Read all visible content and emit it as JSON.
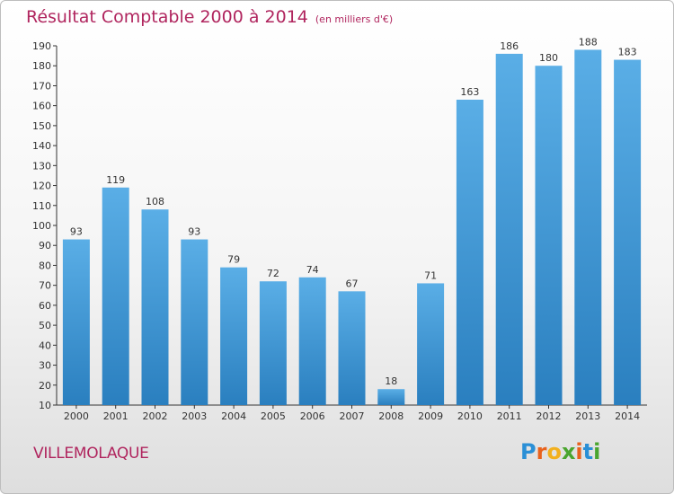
{
  "header": {
    "title": "Résultat Comptable 2000 à 2014",
    "subtitle": "(en milliers d'€)"
  },
  "commune": "VILLEMOLAQUE",
  "logo": {
    "text": "Proxiti",
    "letters": [
      "P",
      "r",
      "o",
      "x",
      "i",
      "t",
      "i"
    ],
    "colors": [
      "#2a8fd6",
      "#e8621d",
      "#f2b01e",
      "#4aa52e",
      "#e8621d",
      "#2a8fd6",
      "#4aa52e"
    ]
  },
  "colors": {
    "bar_top": "#5aaee6",
    "bar_bottom": "#2a7fbf",
    "accent": "#b0255e"
  },
  "chart_data": {
    "type": "bar",
    "categories": [
      "2000",
      "2001",
      "2002",
      "2003",
      "2004",
      "2005",
      "2006",
      "2007",
      "2008",
      "2009",
      "2010",
      "2011",
      "2012",
      "2013",
      "2014"
    ],
    "values": [
      93,
      119,
      108,
      93,
      79,
      72,
      74,
      67,
      18,
      71,
      163,
      186,
      180,
      188,
      183
    ],
    "title": "Résultat Comptable 2000 à 2014",
    "ylim": [
      10,
      190
    ],
    "yticks": [
      10,
      20,
      30,
      40,
      50,
      60,
      70,
      80,
      90,
      100,
      110,
      120,
      130,
      140,
      150,
      160,
      170,
      180,
      190
    ],
    "grid": false
  }
}
